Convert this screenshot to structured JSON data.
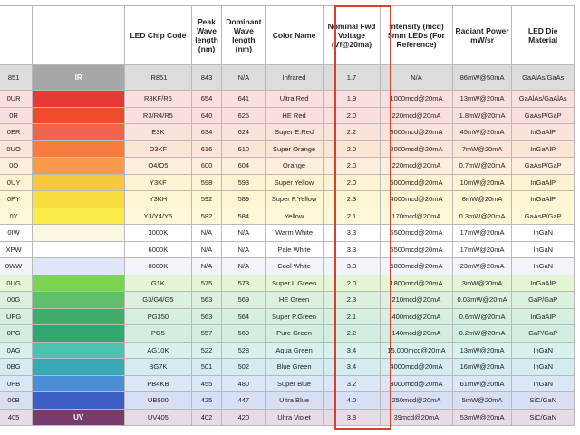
{
  "headers": {
    "chip_code": "LED Chip Code",
    "peak": "Peak Wave length (nm)",
    "dominant": "Dominant Wave length (nm)",
    "color_name": "Color Name",
    "voltage": "Nominal Fwd Voltage (Vf@20ma)",
    "intensity": "Intensity (mcd) 5mm LEDs (For Reference)",
    "radiant": "Radiant Power mW/sr",
    "material": "LED Die Material"
  },
  "colors": {
    "highlight_border": "#d8402b",
    "grid_line": "#b9b9b9"
  },
  "rows": [
    {
      "code": "851",
      "swatch_label": "IR",
      "swatch_color": "#a7a7a7",
      "chip": "IR851",
      "peak": "843",
      "dominant": "N/A",
      "name": "Infrared",
      "voltage": "1.7",
      "intensity": "N/A",
      "radiant": "86mW@50mA",
      "material": "GaAlAs/GaAs",
      "bg": "#dcdcdc"
    },
    {
      "code": "0UR",
      "swatch_label": "",
      "swatch_color": "#e53935",
      "chip": "R3KF/R6",
      "peak": "654",
      "dominant": "641",
      "name": "Ultra Red",
      "voltage": "1.9",
      "intensity": "1000mcd@20mA",
      "radiant": "13mW@20mA",
      "material": "GaAlAs/GaAlAs",
      "bg": "#fbdede"
    },
    {
      "code": "0R",
      "swatch_label": "",
      "swatch_color": "#ee4b2b",
      "chip": "R3/R4/R5",
      "peak": "640",
      "dominant": "625",
      "name": "HE Red",
      "voltage": "2.0",
      "intensity": "220mcd@20mA",
      "radiant": "1.8mW@20mA",
      "material": "GaAsP/GaP",
      "bg": "#fbdede"
    },
    {
      "code": "0ER",
      "swatch_label": "",
      "swatch_color": "#f2634d",
      "chip": "E3K",
      "peak": "634",
      "dominant": "624",
      "name": "Super E.Red",
      "voltage": "2.2",
      "intensity": "8000mcd@20mA",
      "radiant": "45mW@20mA",
      "material": "InGaAlP",
      "bg": "#fbe3dc"
    },
    {
      "code": "0UO",
      "swatch_label": "",
      "swatch_color": "#f57b3e",
      "chip": "O3KF",
      "peak": "616",
      "dominant": "610",
      "name": "Super Orange",
      "voltage": "2.0",
      "intensity": "2000mcd@20mA",
      "radiant": "7mW@20mA",
      "material": "InGaAlP",
      "bg": "#fde5d6"
    },
    {
      "code": "0O",
      "swatch_label": "",
      "swatch_color": "#f89a4a",
      "chip": "O4/O5",
      "peak": "600",
      "dominant": "604",
      "name": "Orange",
      "voltage": "2.0",
      "intensity": "220mcd@20mA",
      "radiant": "0.7mW@20mA",
      "material": "GaAsP/GaP",
      "bg": "#feeede"
    },
    {
      "code": "0UY",
      "swatch_label": "",
      "swatch_color": "#f7c93c",
      "chip": "Y3KF",
      "peak": "598",
      "dominant": "593",
      "name": "Super Yellow",
      "voltage": "2.0",
      "intensity": "5000mcd@20mA",
      "radiant": "10mW@20mA",
      "material": "InGaAlP",
      "bg": "#fdf3d2"
    },
    {
      "code": "0PY",
      "swatch_label": "",
      "swatch_color": "#f9dc3e",
      "chip": "Y3KH",
      "peak": "592",
      "dominant": "589",
      "name": "Super P.Yellow",
      "voltage": "2.3",
      "intensity": "4000mcd@20mA",
      "radiant": "8mW@20mA",
      "material": "InGaAlP",
      "bg": "#fdf6d3"
    },
    {
      "code": "0Y",
      "swatch_label": "",
      "swatch_color": "#faea4a",
      "chip": "Y3/Y4/Y5",
      "peak": "582",
      "dominant": "584",
      "name": "Yellow",
      "voltage": "2.1",
      "intensity": "170mcd@20mA",
      "radiant": "0.3mW@20mA",
      "material": "GaAsP/GaP",
      "bg": "#fdf9d8"
    },
    {
      "code": "0IW",
      "swatch_label": "",
      "swatch_color": "#fbf6df",
      "chip": "3000K",
      "peak": "N/A",
      "dominant": "N/A",
      "name": "Warm White",
      "voltage": "3.3",
      "intensity": "5500mcd@20mA",
      "radiant": "17mW@20mA",
      "material": "InGaN",
      "bg": "#ffffff"
    },
    {
      "code": "XPW",
      "swatch_label": "",
      "swatch_color": "#ffffff",
      "chip": "6000K",
      "peak": "N/A",
      "dominant": "N/A",
      "name": "Pale White",
      "voltage": "3.3",
      "intensity": "5500mcd@20mA",
      "radiant": "17mW@20mA",
      "material": "InGaN",
      "bg": "#ffffff"
    },
    {
      "code": "0WW",
      "swatch_label": "",
      "swatch_color": "#dfe6f5",
      "chip": "8000K",
      "peak": "N/A",
      "dominant": "N/A",
      "name": "Cool White",
      "voltage": "3.3",
      "intensity": "5800mcd@20mA",
      "radiant": "23mW@20mA",
      "material": "InGaN",
      "bg": "#f1f4fb"
    },
    {
      "code": "0UG",
      "swatch_label": "",
      "swatch_color": "#7bd34f",
      "chip": "G1K",
      "peak": "575",
      "dominant": "573",
      "name": "Super L.Green",
      "voltage": "2.0",
      "intensity": "1800mcd@20mA",
      "radiant": "3mW@20mA",
      "material": "InGaAlP",
      "bg": "#e4f6d6"
    },
    {
      "code": "00G",
      "swatch_label": "",
      "swatch_color": "#5fbf6a",
      "chip": "G3/G4/G5",
      "peak": "563",
      "dominant": "569",
      "name": "HE Green",
      "voltage": "2.3",
      "intensity": "210mcd@20mA",
      "radiant": "0.03mW@20mA",
      "material": "GaP/GaP",
      "bg": "#dcf1dd"
    },
    {
      "code": "UPG",
      "swatch_label": "",
      "swatch_color": "#3fae6c",
      "chip": "PG350",
      "peak": "563",
      "dominant": "564",
      "name": "Super P.Green",
      "voltage": "2.1",
      "intensity": "400mcd@20mA",
      "radiant": "0.6mW@20mA",
      "material": "InGaAlP",
      "bg": "#d6efe0"
    },
    {
      "code": "0PG",
      "swatch_label": "",
      "swatch_color": "#2fa970",
      "chip": "PG5",
      "peak": "557",
      "dominant": "560",
      "name": "Pure Green",
      "voltage": "2.2",
      "intensity": "140mcd@20mA",
      "radiant": "0.2mW@20mA",
      "material": "GaP/GaP",
      "bg": "#d2eee0"
    },
    {
      "code": "0AG",
      "swatch_label": "",
      "swatch_color": "#4cc3b0",
      "chip": "AG10K",
      "peak": "522",
      "dominant": "528",
      "name": "Aqua Green",
      "voltage": "3.4",
      "intensity": "15,000mcd@20mA",
      "radiant": "13mW@20mA",
      "material": "InGaN",
      "bg": "#d7f1ec"
    },
    {
      "code": "0BG",
      "swatch_label": "",
      "swatch_color": "#3aa9b5",
      "chip": "BG7K",
      "peak": "501",
      "dominant": "502",
      "name": "Blue Green",
      "voltage": "3.4",
      "intensity": "4000mcd@20mA",
      "radiant": "16mW@20mA",
      "material": "InGaN",
      "bg": "#d4ecef"
    },
    {
      "code": "0PB",
      "swatch_label": "",
      "swatch_color": "#4a8fd6",
      "chip": "PB4KB",
      "peak": "455",
      "dominant": "480",
      "name": "Super Blue",
      "voltage": "3.2",
      "intensity": "3000mcd@20mA",
      "radiant": "61mW@20mA",
      "material": "InGaN",
      "bg": "#d9e7f7"
    },
    {
      "code": "00B",
      "swatch_label": "",
      "swatch_color": "#3d5fc4",
      "chip": "UB500",
      "peak": "425",
      "dominant": "447",
      "name": "Ultra Blue",
      "voltage": "4.0",
      "intensity": "250mcd@20mA",
      "radiant": "5mW@20mA",
      "material": "SiC/GaN",
      "bg": "#d8def3"
    },
    {
      "code": "405",
      "swatch_label": "UV",
      "swatch_color": "#7b3a6e",
      "chip": "UV405",
      "peak": "402",
      "dominant": "420",
      "name": "Ultra Violet",
      "voltage": "3.8",
      "intensity": "39mcd@20mA",
      "radiant": "53mW@20mA",
      "material": "SiC/GaN",
      "bg": "#e7dbe6"
    }
  ]
}
